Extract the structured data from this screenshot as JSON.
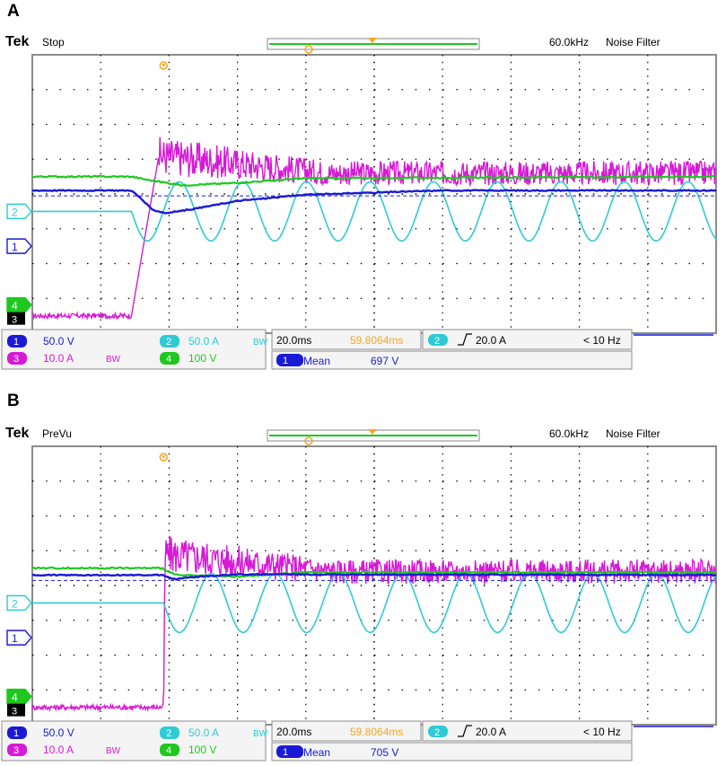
{
  "panels": [
    {
      "letter": "A",
      "brand": "Tek",
      "state": "Stop",
      "freq_label": "60.0kHz",
      "filter_label": "Noise Filter",
      "ch1": {
        "num": "1",
        "scale": "50.0 V"
      },
      "ch2": {
        "num": "2",
        "scale": "50.0 A",
        "bw": "BW"
      },
      "ch3": {
        "num": "3",
        "scale": "10.0 A",
        "bw": "BW"
      },
      "ch4": {
        "num": "4",
        "scale": "100 V"
      },
      "timebase": "20.0ms",
      "trigger_pos": "59.8064ms",
      "trigger_ch": "2",
      "trigger_level": "20.0 A",
      "trigger_freq": "< 10 Hz",
      "meas_ch": "1",
      "meas_label": "Mean",
      "meas_value": "697 V"
    },
    {
      "letter": "B",
      "brand": "Tek",
      "state": "PreVu",
      "freq_label": "60.0kHz",
      "filter_label": "Noise Filter",
      "ch1": {
        "num": "1",
        "scale": "50.0 V"
      },
      "ch2": {
        "num": "2",
        "scale": "50.0 A",
        "bw": "BW"
      },
      "ch3": {
        "num": "3",
        "scale": "10.0 A",
        "bw": "BW"
      },
      "ch4": {
        "num": "4",
        "scale": "100 V"
      },
      "timebase": "20.0ms",
      "trigger_pos": "59.8064ms",
      "trigger_ch": "2",
      "trigger_level": "20.0 A",
      "trigger_freq": "< 10 Hz",
      "meas_ch": "1",
      "meas_label": "Mean",
      "meas_value": "705 V"
    }
  ],
  "colors": {
    "ch1": "#1a1ad6",
    "ch2": "#2ecbd6",
    "ch3": "#d61ad6",
    "ch4": "#1ec81e",
    "grid": "#000000",
    "background": "#ffffff",
    "frame": "#8c8c8c",
    "trigger": "#f5a623"
  },
  "chart_data": [
    {
      "type": "line",
      "title": "",
      "xunit": "div",
      "x_divisions": 10,
      "y_divisions": 8,
      "trigger_x_div": 1.92,
      "series": [
        {
          "name": "1",
          "offset_div": 2.5,
          "points": [
            [
              0,
              1.6
            ],
            [
              1.45,
              1.6
            ],
            [
              1.6,
              1.35
            ],
            [
              1.75,
              1.05
            ],
            [
              1.95,
              0.95
            ],
            [
              2.3,
              1.05
            ],
            [
              3.0,
              1.3
            ],
            [
              4.0,
              1.48
            ],
            [
              6.0,
              1.6
            ],
            [
              10,
              1.6
            ]
          ]
        },
        {
          "name": "2",
          "offset_div": 3.5,
          "pre_level_div": 0,
          "post_amplitude_div": 0.85,
          "period_div": 0.93,
          "start_div": 1.45
        },
        {
          "name": "3",
          "offset_div": 0.5,
          "pre_level_div": 0,
          "post_level_div": 4.6,
          "rise_start_div": 1.45,
          "rise_end_div": 1.85,
          "noise_div": 0.35
        },
        {
          "name": "4",
          "offset_div": 0.5,
          "points": [
            [
              0,
              4.0
            ],
            [
              1.45,
              4.0
            ],
            [
              1.7,
              3.9
            ],
            [
              2.2,
              3.75
            ],
            [
              3.0,
              3.82
            ],
            [
              4.0,
              3.95
            ],
            [
              10,
              4.0
            ]
          ]
        }
      ]
    },
    {
      "type": "line",
      "title": "",
      "xunit": "div",
      "x_divisions": 10,
      "y_divisions": 8,
      "trigger_x_div": 1.92,
      "series": [
        {
          "name": "1",
          "offset_div": 2.5,
          "points": [
            [
              0,
              1.8
            ],
            [
              1.9,
              1.8
            ],
            [
              2.05,
              1.68
            ],
            [
              2.4,
              1.75
            ],
            [
              3.0,
              1.82
            ],
            [
              10,
              1.8
            ]
          ]
        },
        {
          "name": "2",
          "offset_div": 3.5,
          "pre_level_div": 0,
          "post_amplitude_div": 0.85,
          "period_div": 0.93,
          "start_div": 1.92
        },
        {
          "name": "3",
          "offset_div": 0.5,
          "pre_level_div": 0,
          "post_level_div": 4.4,
          "rise_start_div": 1.92,
          "rise_end_div": 1.94,
          "noise_div": 0.35
        },
        {
          "name": "4",
          "offset_div": 0.5,
          "points": [
            [
              0,
              4.0
            ],
            [
              1.9,
              4.0
            ],
            [
              2.1,
              3.8
            ],
            [
              3.0,
              3.75
            ],
            [
              4.0,
              3.88
            ],
            [
              10,
              3.88
            ]
          ]
        }
      ]
    }
  ]
}
